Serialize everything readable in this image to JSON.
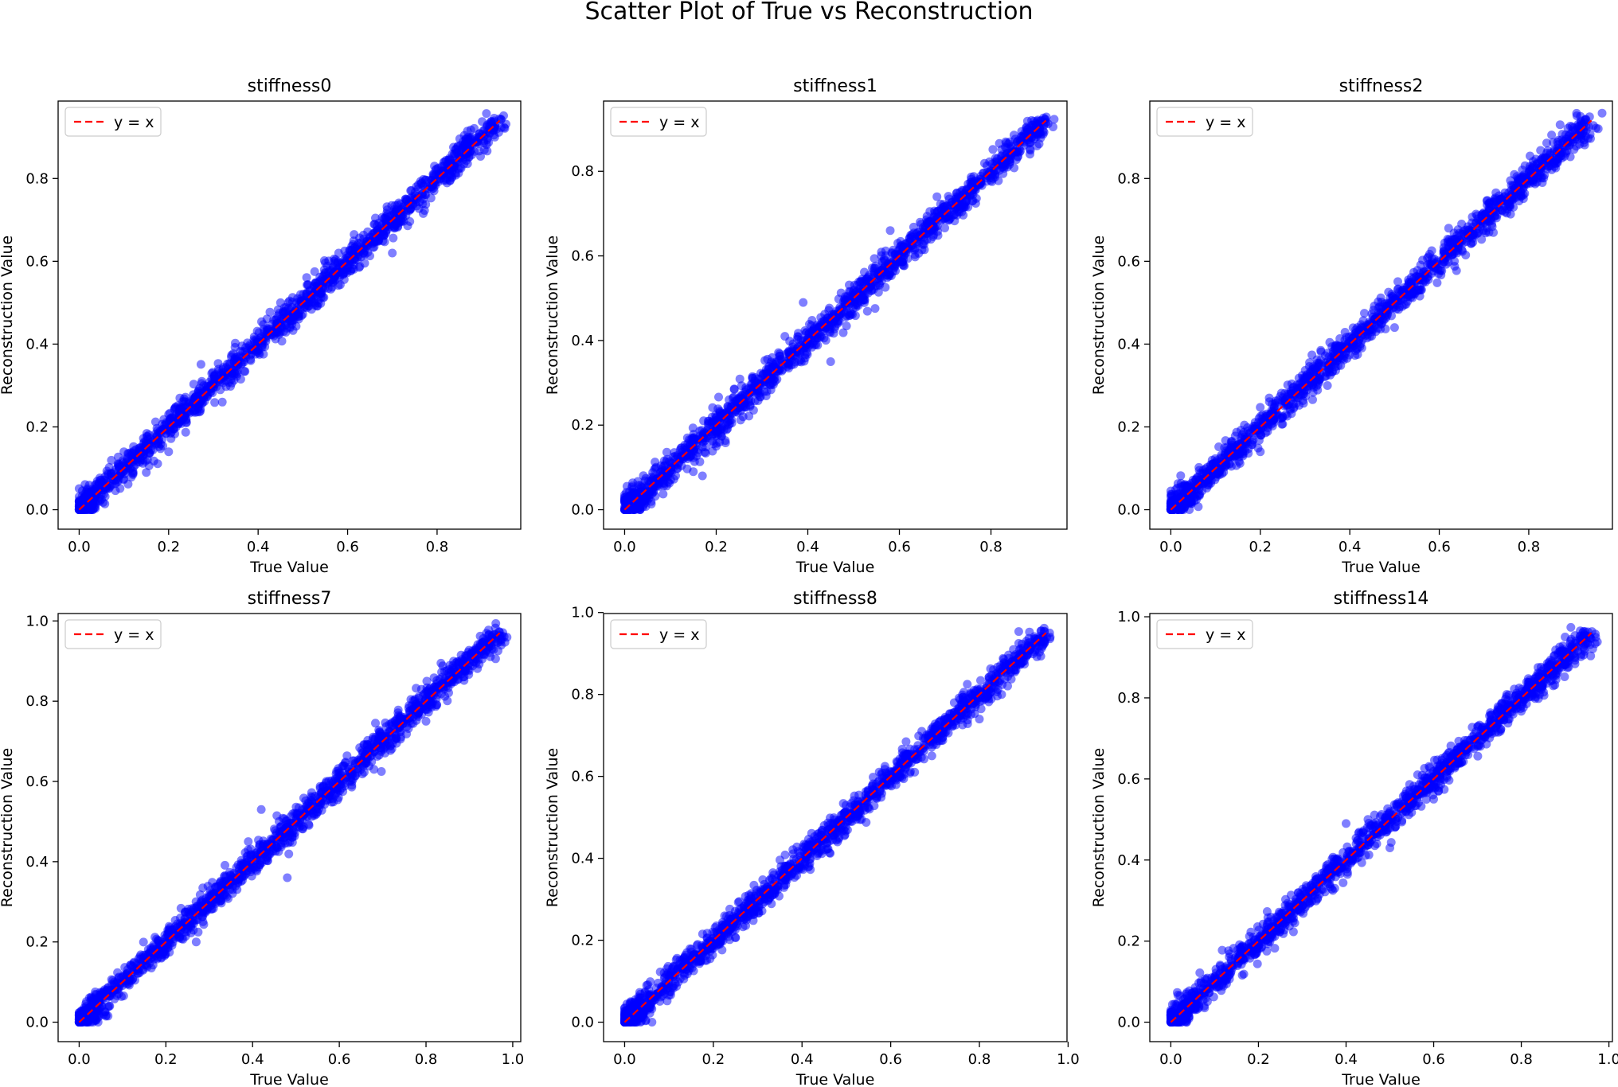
{
  "figure_title": "Scatter Plot of True vs Reconstruction",
  "colors": {
    "points": "#0000ff",
    "reference_line": "#ff0000",
    "axes": "#000000",
    "legend_border": "#cccccc"
  },
  "chart_data": [
    {
      "type": "scatter",
      "title": "stiffness0",
      "xlabel": "True Value",
      "ylabel": "Reconstruction Value",
      "xlim": [
        -0.047,
        0.987
      ],
      "ylim": [
        -0.047,
        0.987
      ],
      "xticks": [
        0.0,
        0.2,
        0.4,
        0.6,
        0.8
      ],
      "yticks": [
        0.0,
        0.2,
        0.4,
        0.6,
        0.8
      ],
      "data_range": [
        0.0,
        0.94
      ],
      "spread": 0.013,
      "reference_line": {
        "label": "y = x",
        "from": 0.0,
        "to": 0.94
      },
      "legend": "top-left",
      "outliers": [
        [
          0.15,
          0.09
        ],
        [
          0.2,
          0.14
        ],
        [
          0.1,
          0.14
        ],
        [
          0.45,
          0.5
        ],
        [
          0.7,
          0.62
        ],
        [
          0.58,
          0.62
        ],
        [
          0.32,
          0.26
        ]
      ]
    },
    {
      "type": "scatter",
      "title": "stiffness1",
      "xlabel": "True Value",
      "ylabel": "Reconstruction Value",
      "xlim": [
        -0.046,
        0.966
      ],
      "ylim": [
        -0.046,
        0.966
      ],
      "xticks": [
        0.0,
        0.2,
        0.4,
        0.6,
        0.8
      ],
      "yticks": [
        0.0,
        0.2,
        0.4,
        0.6,
        0.8
      ],
      "data_range": [
        0.0,
        0.92
      ],
      "spread": 0.013,
      "reference_line": {
        "label": "y = x",
        "from": 0.0,
        "to": 0.92
      },
      "legend": "top-left",
      "outliers": [
        [
          0.39,
          0.49
        ],
        [
          0.45,
          0.35
        ],
        [
          0.15,
          0.09
        ],
        [
          0.17,
          0.08
        ],
        [
          0.58,
          0.66
        ],
        [
          0.75,
          0.77
        ],
        [
          0.35,
          0.41
        ],
        [
          0.2,
          0.15
        ]
      ]
    },
    {
      "type": "scatter",
      "title": "stiffness2",
      "xlabel": "True Value",
      "ylabel": "Reconstruction Value",
      "xlim": [
        -0.047,
        0.987
      ],
      "ylim": [
        -0.047,
        0.987
      ],
      "xticks": [
        0.0,
        0.2,
        0.4,
        0.6,
        0.8
      ],
      "yticks": [
        0.0,
        0.2,
        0.4,
        0.6,
        0.8
      ],
      "data_range": [
        0.0,
        0.94
      ],
      "spread": 0.013,
      "reference_line": {
        "label": "y = x",
        "from": 0.0,
        "to": 0.94
      },
      "legend": "top-left",
      "outliers": [
        [
          0.87,
          0.93
        ],
        [
          0.2,
          0.14
        ],
        [
          0.5,
          0.44
        ],
        [
          0.65,
          0.69
        ],
        [
          0.35,
          0.3
        ],
        [
          0.22,
          0.27
        ]
      ]
    },
    {
      "type": "scatter",
      "title": "stiffness7",
      "xlabel": "True Value",
      "ylabel": "Reconstruction Value",
      "xlim": [
        -0.0485,
        1.0185
      ],
      "ylim": [
        -0.0485,
        1.0185
      ],
      "xticks": [
        0.0,
        0.2,
        0.4,
        0.6,
        0.8,
        1.0
      ],
      "yticks": [
        0.0,
        0.2,
        0.4,
        0.6,
        0.8,
        1.0
      ],
      "data_range": [
        0.0,
        0.97
      ],
      "spread": 0.013,
      "reference_line": {
        "label": "y = x",
        "from": 0.0,
        "to": 0.97
      },
      "legend": "top-left",
      "outliers": [
        [
          0.42,
          0.53
        ],
        [
          0.39,
          0.45
        ],
        [
          0.48,
          0.36
        ],
        [
          0.27,
          0.2
        ],
        [
          0.68,
          0.63
        ],
        [
          0.8,
          0.75
        ],
        [
          0.57,
          0.6
        ]
      ]
    },
    {
      "type": "scatter",
      "title": "stiffness8",
      "xlabel": "True Value",
      "ylabel": "Reconstruction Value",
      "xlim": [
        -0.0475,
        0.9975
      ],
      "ylim": [
        -0.0475,
        0.9975
      ],
      "xticks": [
        0.0,
        0.2,
        0.4,
        0.6,
        0.8,
        1.0
      ],
      "yticks": [
        0.0,
        0.2,
        0.4,
        0.6,
        0.8,
        1.0
      ],
      "data_range": [
        0.0,
        0.95
      ],
      "spread": 0.013,
      "reference_line": {
        "label": "y = x",
        "from": 0.0,
        "to": 0.95
      },
      "legend": "top-left",
      "outliers": [
        [
          0.67,
          0.71
        ],
        [
          0.8,
          0.74
        ],
        [
          0.45,
          0.48
        ],
        [
          0.85,
          0.8
        ],
        [
          0.48,
          0.44
        ],
        [
          0.28,
          0.31
        ]
      ]
    },
    {
      "type": "scatter",
      "title": "stiffness14",
      "xlabel": "True Value",
      "ylabel": "Reconstruction Value",
      "xlim": [
        -0.048,
        1.008
      ],
      "ylim": [
        -0.048,
        1.008
      ],
      "xticks": [
        0.0,
        0.2,
        0.4,
        0.6,
        0.8,
        1.0
      ],
      "yticks": [
        0.0,
        0.2,
        0.4,
        0.6,
        0.8,
        1.0
      ],
      "data_range": [
        0.0,
        0.96
      ],
      "spread": 0.013,
      "reference_line": {
        "label": "y = x",
        "from": 0.0,
        "to": 0.96
      },
      "legend": "top-left",
      "outliers": [
        [
          0.4,
          0.49
        ],
        [
          0.45,
          0.5
        ],
        [
          0.5,
          0.43
        ],
        [
          0.9,
          0.95
        ],
        [
          0.47,
          0.44
        ],
        [
          0.2,
          0.2
        ],
        [
          0.6,
          0.55
        ],
        [
          0.35,
          0.37
        ]
      ]
    }
  ]
}
